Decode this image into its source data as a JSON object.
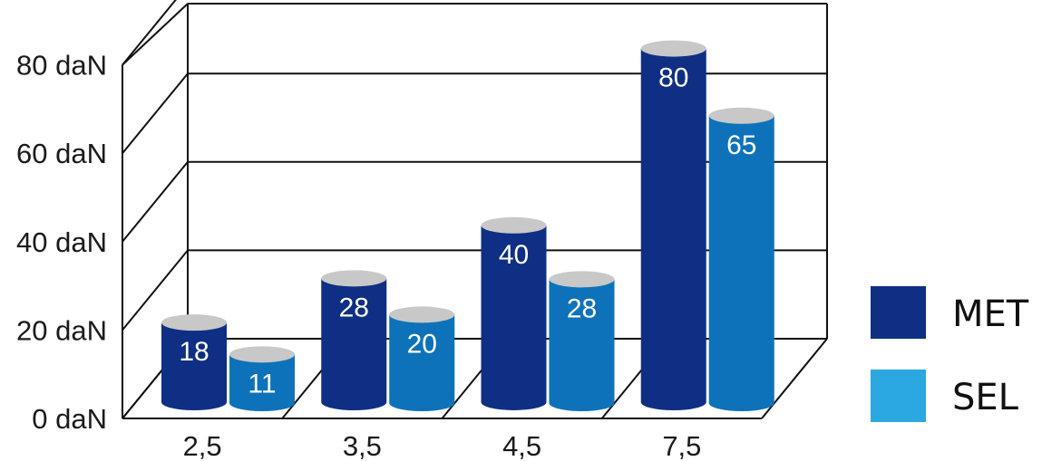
{
  "chart_data": {
    "type": "bar",
    "categories": [
      "2,5",
      "3,5",
      "4,5",
      "7,5"
    ],
    "series": [
      {
        "name": "MET",
        "values": [
          18,
          28,
          40,
          80
        ],
        "color": "#0f2f84"
      },
      {
        "name": "SEL",
        "values": [
          11,
          20,
          28,
          65
        ],
        "color": "#0d72b9"
      }
    ],
    "legend_colors": [
      "#0f2f84",
      "#2aa8df"
    ],
    "y_ticks": [
      "0 daN",
      "20 daN",
      "40 daN",
      "60 daN",
      "80 daN"
    ],
    "ylim": [
      0,
      80
    ],
    "grid": true,
    "legend_position": "right",
    "style": "3d-cylinder"
  }
}
